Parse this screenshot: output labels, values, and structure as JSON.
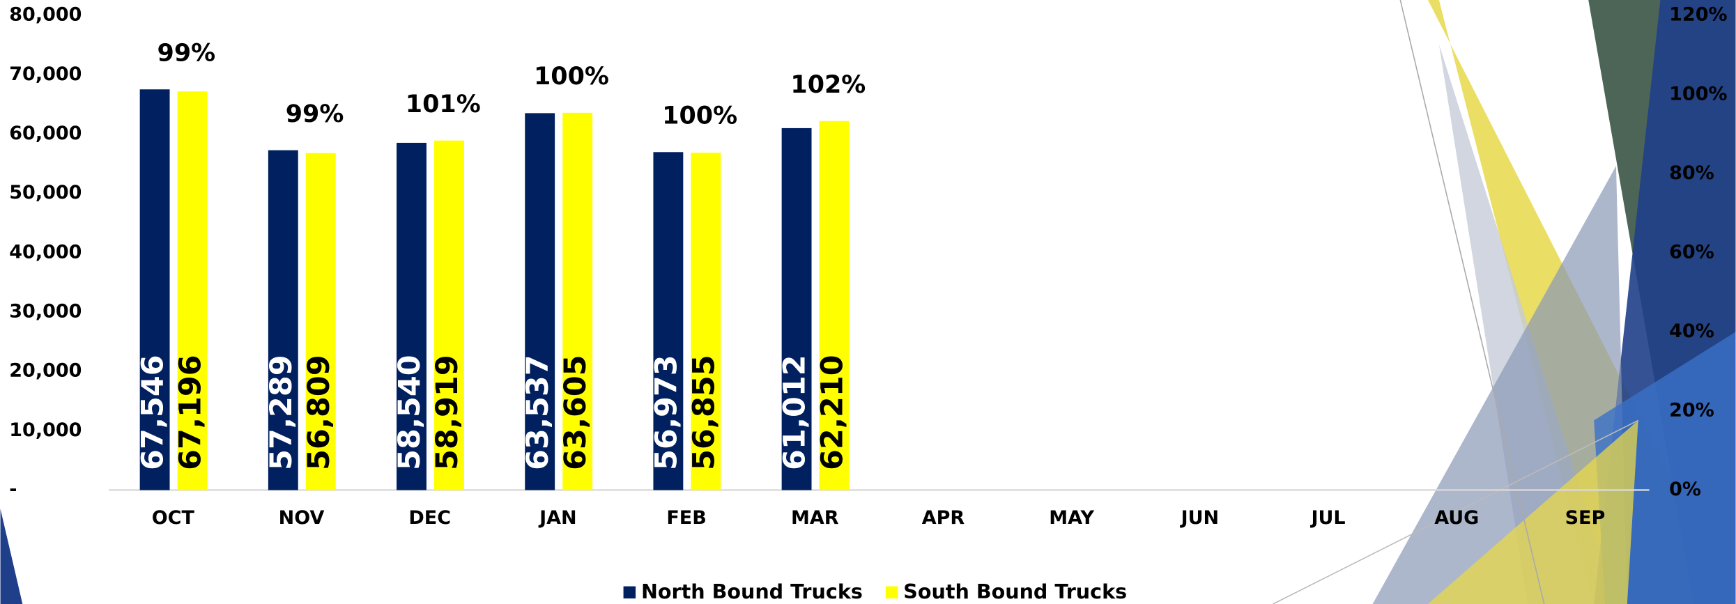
{
  "chart_data": {
    "type": "bar",
    "categories": [
      "OCT",
      "NOV",
      "DEC",
      "JAN",
      "FEB",
      "MAR",
      "APR",
      "MAY",
      "JUN",
      "JUL",
      "AUG",
      "SEP"
    ],
    "series": [
      {
        "name": "North Bound Trucks",
        "color": "#002060",
        "values": [
          67546,
          57289,
          58540,
          63537,
          56973,
          61012,
          null,
          null,
          null,
          null,
          null,
          null
        ],
        "value_labels": [
          "67,546",
          "57,289",
          "58,540",
          "63,537",
          "56,973",
          "61,012",
          null,
          null,
          null,
          null,
          null,
          null
        ]
      },
      {
        "name": "South Bound Trucks",
        "color": "#ffff00",
        "values": [
          67196,
          56809,
          58919,
          63605,
          56855,
          62210,
          null,
          null,
          null,
          null,
          null,
          null
        ],
        "value_labels": [
          "67,196",
          "56,809",
          "58,919",
          "63,605",
          "56,855",
          "62,210",
          null,
          null,
          null,
          null,
          null,
          null
        ]
      }
    ],
    "pair_labels": [
      "99%",
      "99%",
      "101%",
      "100%",
      "100%",
      "102%",
      null,
      null,
      null,
      null,
      null,
      null
    ],
    "ylim": [
      0,
      80000
    ],
    "yticks": [
      {
        "value": 0,
        "label": "-"
      },
      {
        "value": 10000,
        "label": "10,000"
      },
      {
        "value": 20000,
        "label": "20,000"
      },
      {
        "value": 30000,
        "label": "30,000"
      },
      {
        "value": 40000,
        "label": "40,000"
      },
      {
        "value": 50000,
        "label": "50,000"
      },
      {
        "value": 60000,
        "label": "60,000"
      },
      {
        "value": 70000,
        "label": "70,000"
      },
      {
        "value": 80000,
        "label": "80,000"
      }
    ],
    "y2lim": [
      0,
      120
    ],
    "y2ticks": [
      {
        "value": 0,
        "label": "0%"
      },
      {
        "value": 20,
        "label": "20%"
      },
      {
        "value": 40,
        "label": "40%"
      },
      {
        "value": 60,
        "label": "60%"
      },
      {
        "value": 80,
        "label": "80%"
      },
      {
        "value": 100,
        "label": "100%"
      },
      {
        "value": 120,
        "label": "120%"
      }
    ],
    "legend": "bottom"
  }
}
